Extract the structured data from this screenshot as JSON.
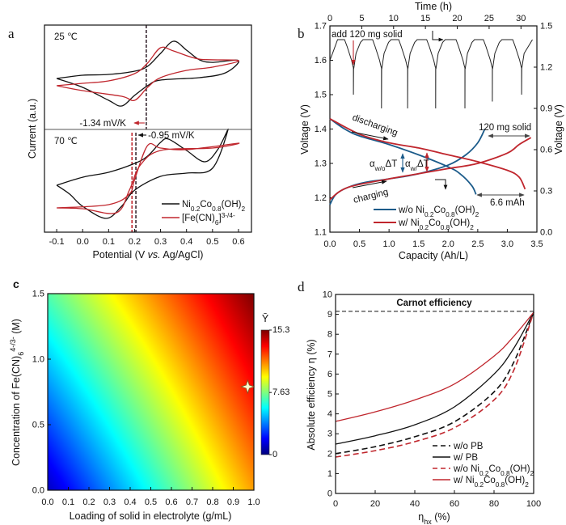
{
  "panels": {
    "a": "a",
    "b": "b",
    "c": "c",
    "d": "d"
  },
  "chart_data": [
    {
      "type": "line",
      "panel": "a",
      "xlabel_parts": [
        {
          "t": "Potential (V "
        },
        {
          "t": "vs.",
          "i": 1
        },
        {
          "t": " Ag/AgCl)"
        }
      ],
      "ylabel": "Current (a.u.)",
      "xlim": [
        -0.147,
        0.65
      ],
      "xticks": [
        "-0.1",
        "0.0",
        "0.1",
        "0.2",
        "0.3",
        "0.4",
        "0.5",
        "0.6"
      ],
      "subplots": [
        {
          "label": "25 ℃",
          "ylim": [
            0,
            10
          ],
          "series": [
            {
              "name": "Ni0.2Co0.8(OH)2",
              "color": "#111111",
              "points": [
                [
                  -0.1,
                  4.88
                ],
                [
                  0.0,
                  5.19
                ],
                [
                  0.1,
                  5.27
                ],
                [
                  0.2,
                  5.58
                ],
                [
                  0.25,
                  6.05
                ],
                [
                  0.3,
                  7.29
                ],
                [
                  0.35,
                  8.45
                ],
                [
                  0.4,
                  7.6
                ],
                [
                  0.45,
                  6.67
                ],
                [
                  0.5,
                  6.43
                ],
                [
                  0.6,
                  6.6
                ],
                [
                  0.55,
                  5.43
                ],
                [
                  0.45,
                  4.96
                ],
                [
                  0.3,
                  4.73
                ],
                [
                  0.25,
                  4.19
                ],
                [
                  0.2,
                  3.26
                ],
                [
                  0.15,
                  2.25
                ],
                [
                  0.1,
                  2.79
                ],
                [
                  0.0,
                  4.03
                ],
                [
                  -0.1,
                  4.88
                ]
              ]
            },
            {
              "name": "[Fe(CN)6]3-/4-",
              "color": "#c0262d",
              "points": [
                [
                  -0.1,
                  4.19
                ],
                [
                  0.0,
                  4.42
                ],
                [
                  0.1,
                  4.65
                ],
                [
                  0.2,
                  5.35
                ],
                [
                  0.25,
                  6.36
                ],
                [
                  0.3,
                  7.83
                ],
                [
                  0.35,
                  7.52
                ],
                [
                  0.45,
                  6.74
                ],
                [
                  0.6,
                  6.6
                ],
                [
                  0.5,
                  5.97
                ],
                [
                  0.4,
                  5.66
                ],
                [
                  0.3,
                  4.96
                ],
                [
                  0.25,
                  4.03
                ],
                [
                  0.2,
                  2.79
                ],
                [
                  0.15,
                  3.18
                ],
                [
                  0.0,
                  3.72
                ],
                [
                  -0.1,
                  4.19
                ]
              ]
            }
          ],
          "dashed_potentials": [
            0.245
          ]
        },
        {
          "label": "70 ℃",
          "ylim": [
            0,
            10
          ],
          "series": [
            {
              "name": "Ni0.2Co0.8(OH)2",
              "color": "#111111",
              "points": [
                [
                  -0.1,
                  4.57
                ],
                [
                  0.0,
                  5.35
                ],
                [
                  0.1,
                  5.83
                ],
                [
                  0.2,
                  6.69
                ],
                [
                  0.25,
                  7.4
                ],
                [
                  0.3,
                  8.74
                ],
                [
                  0.33,
                  9.06
                ],
                [
                  0.4,
                  7.95
                ],
                [
                  0.47,
                  6.85
                ],
                [
                  0.52,
                  8.03
                ],
                [
                  0.56,
                  10.0
                ],
                [
                  0.5,
                  6.22
                ],
                [
                  0.4,
                  5.75
                ],
                [
                  0.3,
                  5.43
                ],
                [
                  0.2,
                  4.09
                ],
                [
                  0.15,
                  2.52
                ],
                [
                  0.09,
                  1.34
                ],
                [
                  0.0,
                  2.52
                ],
                [
                  -0.05,
                  3.7
                ],
                [
                  -0.1,
                  4.57
                ]
              ]
            },
            {
              "name": "[Fe(CN)6]3-/4-",
              "color": "#c0262d",
              "points": [
                [
                  -0.1,
                  2.36
                ],
                [
                  0.1,
                  2.68
                ],
                [
                  0.18,
                  3.7
                ],
                [
                  0.2,
                  5.12
                ],
                [
                  0.25,
                  8.43
                ],
                [
                  0.3,
                  8.19
                ],
                [
                  0.4,
                  8.03
                ],
                [
                  0.6,
                  8.66
                ],
                [
                  0.5,
                  8.19
                ],
                [
                  0.3,
                  7.95
                ],
                [
                  0.22,
                  6.46
                ],
                [
                  0.18,
                  4.09
                ],
                [
                  0.13,
                  1.89
                ],
                [
                  0.0,
                  2.28
                ],
                [
                  -0.1,
                  2.36
                ]
              ]
            }
          ],
          "dashed_potentials": [
            0.19,
            0.205
          ]
        }
      ],
      "annotations": {
        "red_shift": "-1.34 mV/K",
        "black_shift": "-0.95 mV/K"
      },
      "legend": [
        {
          "parts": [
            {
              "t": "Ni"
            },
            {
              "t": "0.2",
              "s": "sub"
            },
            {
              "t": "Co"
            },
            {
              "t": "0.8",
              "s": "sub"
            },
            {
              "t": "(OH)"
            },
            {
              "t": "2",
              "s": "sub"
            }
          ],
          "color": "#111111"
        },
        {
          "parts": [
            {
              "t": "[Fe(CN)"
            },
            {
              "t": "6",
              "s": "sub"
            },
            {
              "t": "]"
            },
            {
              "t": "3-/4-",
              "s": "sup"
            }
          ],
          "color": "#c0262d"
        }
      ],
      "legend_position": "bottom-right"
    },
    {
      "type": "line",
      "panel": "b",
      "xlabel": "Capacity (Ah/L)",
      "ylabel_left": "Voltage (V)",
      "ylabel_right": "Voltage (V)",
      "xlabel_top": "Time (h)",
      "xlim": [
        0,
        3.5
      ],
      "ylim": [
        1.1,
        1.7
      ],
      "ylim_right": [
        0,
        1.5
      ],
      "xlim_top": [
        0,
        32.5
      ],
      "xticks": [
        "0.0",
        "0.5",
        "1.0",
        "1.5",
        "2.0",
        "2.5",
        "3.0",
        "3.5"
      ],
      "yticks": [
        "1.1",
        "1.2",
        "1.3",
        "1.4",
        "1.5",
        "1.6",
        "1.7"
      ],
      "yticks_right": [
        "0.0",
        "0.3",
        "0.6",
        "0.9",
        "1.2",
        "1.5"
      ],
      "xticks_top": [
        "0",
        "5",
        "10",
        "15",
        "20",
        "25",
        "30"
      ],
      "time_trace": {
        "start_voltage": 1.25,
        "plateau_voltage": 1.4,
        "base_voltage": 1.19,
        "spike_times_h": [
          3.7,
          8.1,
          12.2,
          16.6,
          21.2,
          25.5,
          30.1
        ],
        "spike_min_v": [
          1.0,
          0.9,
          0.9,
          0.9,
          0.9,
          0.95,
          1.0
        ],
        "end_time_h": 31.8
      },
      "series": [
        {
          "name": "w/o discharge",
          "color": "#1b5b8a",
          "points": [
            [
              0,
              1.43
            ],
            [
              0.25,
              1.4
            ],
            [
              0.5,
              1.38
            ],
            [
              1.0,
              1.355
            ],
            [
              1.5,
              1.325
            ],
            [
              2.0,
              1.29
            ],
            [
              2.2,
              1.27
            ],
            [
              2.4,
              1.235
            ],
            [
              2.47,
              1.21
            ]
          ]
        },
        {
          "name": "w/o charge",
          "color": "#1b5b8a",
          "points": [
            [
              0,
              1.18
            ],
            [
              0.1,
              1.21
            ],
            [
              0.3,
              1.23
            ],
            [
              0.6,
              1.245
            ],
            [
              1.0,
              1.255
            ],
            [
              1.5,
              1.27
            ],
            [
              2.0,
              1.295
            ],
            [
              2.3,
              1.325
            ],
            [
              2.5,
              1.36
            ],
            [
              2.62,
              1.4
            ]
          ]
        },
        {
          "name": "w/ discharge",
          "color": "#c0262d",
          "points": [
            [
              0,
              1.43
            ],
            [
              0.5,
              1.385
            ],
            [
              1.0,
              1.36
            ],
            [
              1.5,
              1.345
            ],
            [
              2.0,
              1.325
            ],
            [
              2.5,
              1.305
            ],
            [
              3.0,
              1.28
            ],
            [
              3.2,
              1.26
            ],
            [
              3.3,
              1.225
            ]
          ]
        },
        {
          "name": "w/ charge",
          "color": "#c0262d",
          "points": [
            [
              0,
              1.195
            ],
            [
              0.3,
              1.23
            ],
            [
              1.0,
              1.255
            ],
            [
              1.5,
              1.27
            ],
            [
              2.0,
              1.285
            ],
            [
              2.5,
              1.3
            ],
            [
              3.0,
              1.33
            ],
            [
              3.2,
              1.355
            ],
            [
              3.4,
              1.375
            ]
          ]
        }
      ],
      "annotations": {
        "add_solid": "add 120 mg solid",
        "discharging": "discharging",
        "charging": "charging",
        "solid_120": "120 mg solid",
        "capacity_gain": "6.6 mAh",
        "alpha_wo": [
          {
            "t": "α"
          },
          {
            "t": "w/o",
            "s": "sub"
          },
          {
            "t": "ΔT"
          }
        ],
        "alpha_w": [
          {
            "t": "α"
          },
          {
            "t": "w/",
            "s": "sub"
          },
          {
            "t": "ΔT"
          }
        ]
      },
      "legend": [
        {
          "parts": [
            {
              "t": "w/o Ni"
            },
            {
              "t": "0.2",
              "s": "sub"
            },
            {
              "t": "Co"
            },
            {
              "t": "0.8",
              "s": "sub"
            },
            {
              "t": "(OH)"
            },
            {
              "t": "2",
              "s": "sub"
            }
          ],
          "color": "#1b5b8a"
        },
        {
          "parts": [
            {
              "t": "w/ Ni"
            },
            {
              "t": "0.2",
              "s": "sub"
            },
            {
              "t": "Co"
            },
            {
              "t": "0.8",
              "s": "sub"
            },
            {
              "t": "(OH)"
            },
            {
              "t": "2",
              "s": "sub"
            }
          ],
          "color": "#c0262d"
        }
      ],
      "legend_position": "bottom-center"
    },
    {
      "type": "heatmap",
      "panel": "c",
      "xlabel": "Loading of solid in electrolyte (g/mL)",
      "ylabel_parts": [
        {
          "t": "Concentration of Fe(CN)"
        },
        {
          "t": "6",
          "s": "sub"
        },
        {
          "t": "4-/3-",
          "s": "sup"
        },
        {
          "t": " (M)"
        }
      ],
      "xlim": [
        0,
        1.0
      ],
      "ylim": [
        0,
        1.5
      ],
      "xticks": [
        "0.0",
        "0.1",
        "0.2",
        "0.3",
        "0.4",
        "0.5",
        "0.6",
        "0.7",
        "0.8",
        "0.9",
        "1.0"
      ],
      "yticks": [
        "0.0",
        "0.5",
        "1.0",
        "1.5"
      ],
      "z_corners": {
        "x0y0": 1.0,
        "x1y0": 11.0,
        "x0y1": 7.0,
        "x1y1": 15.3
      },
      "colorbar": {
        "title": "Ȳ",
        "min": 0,
        "max": 15.3,
        "ticks": [
          "0",
          "7.63",
          "15.3"
        ],
        "colormap": "jet"
      },
      "marker": {
        "x": 0.97,
        "y": 0.79,
        "symbol": "star"
      }
    },
    {
      "type": "line",
      "panel": "d",
      "xlabel_parts": [
        {
          "t": "η"
        },
        {
          "t": "hx",
          "s": "sub"
        },
        {
          "t": " (%)"
        }
      ],
      "ylabel": "Absolute efficiency η (%)",
      "xlim": [
        0,
        100
      ],
      "ylim": [
        0,
        10
      ],
      "xticks": [
        "0",
        "20",
        "40",
        "60",
        "80",
        "100"
      ],
      "yticks": [
        "0",
        "1",
        "2",
        "3",
        "4",
        "5",
        "6",
        "7",
        "8",
        "9",
        "10"
      ],
      "carnot": {
        "label": "Carnot efficiency",
        "value": 9.15
      },
      "x": [
        0,
        20,
        40,
        60,
        80,
        90,
        100
      ],
      "series": [
        {
          "name": "w/o PB",
          "color": "#111111",
          "dash": true,
          "values": [
            2.0,
            2.35,
            2.85,
            3.6,
            5.1,
            6.6,
            9.1
          ]
        },
        {
          "name": "w/ PB",
          "color": "#111111",
          "dash": false,
          "values": [
            2.48,
            2.9,
            3.45,
            4.35,
            6.0,
            7.3,
            9.1
          ]
        },
        {
          "name": "w/o Ni0.2Co0.8(OH)2",
          "color": "#c0262d",
          "dash": true,
          "values": [
            1.83,
            2.15,
            2.6,
            3.3,
            4.7,
            6.2,
            9.1
          ]
        },
        {
          "name": "w/ Ni0.2Co0.8(OH)2",
          "color": "#c0262d",
          "dash": false,
          "values": [
            3.62,
            4.1,
            4.7,
            5.5,
            6.9,
            7.9,
            9.1
          ]
        }
      ],
      "legend": [
        {
          "parts": [
            {
              "t": "w/o PB"
            }
          ]
        },
        {
          "parts": [
            {
              "t": "w/ PB"
            }
          ]
        },
        {
          "parts": [
            {
              "t": "w/o Ni"
            },
            {
              "t": "0.2",
              "s": "sub"
            },
            {
              "t": "Co"
            },
            {
              "t": "0.8",
              "s": "sub"
            },
            {
              "t": "(OH)"
            },
            {
              "t": "2",
              "s": "sub"
            }
          ]
        },
        {
          "parts": [
            {
              "t": "w/ Ni"
            },
            {
              "t": "0.2",
              "s": "sub"
            },
            {
              "t": "Co"
            },
            {
              "t": "0.8",
              "s": "sub"
            },
            {
              "t": "(OH)"
            },
            {
              "t": "2",
              "s": "sub"
            }
          ]
        }
      ],
      "legend_position": "bottom-right"
    }
  ]
}
